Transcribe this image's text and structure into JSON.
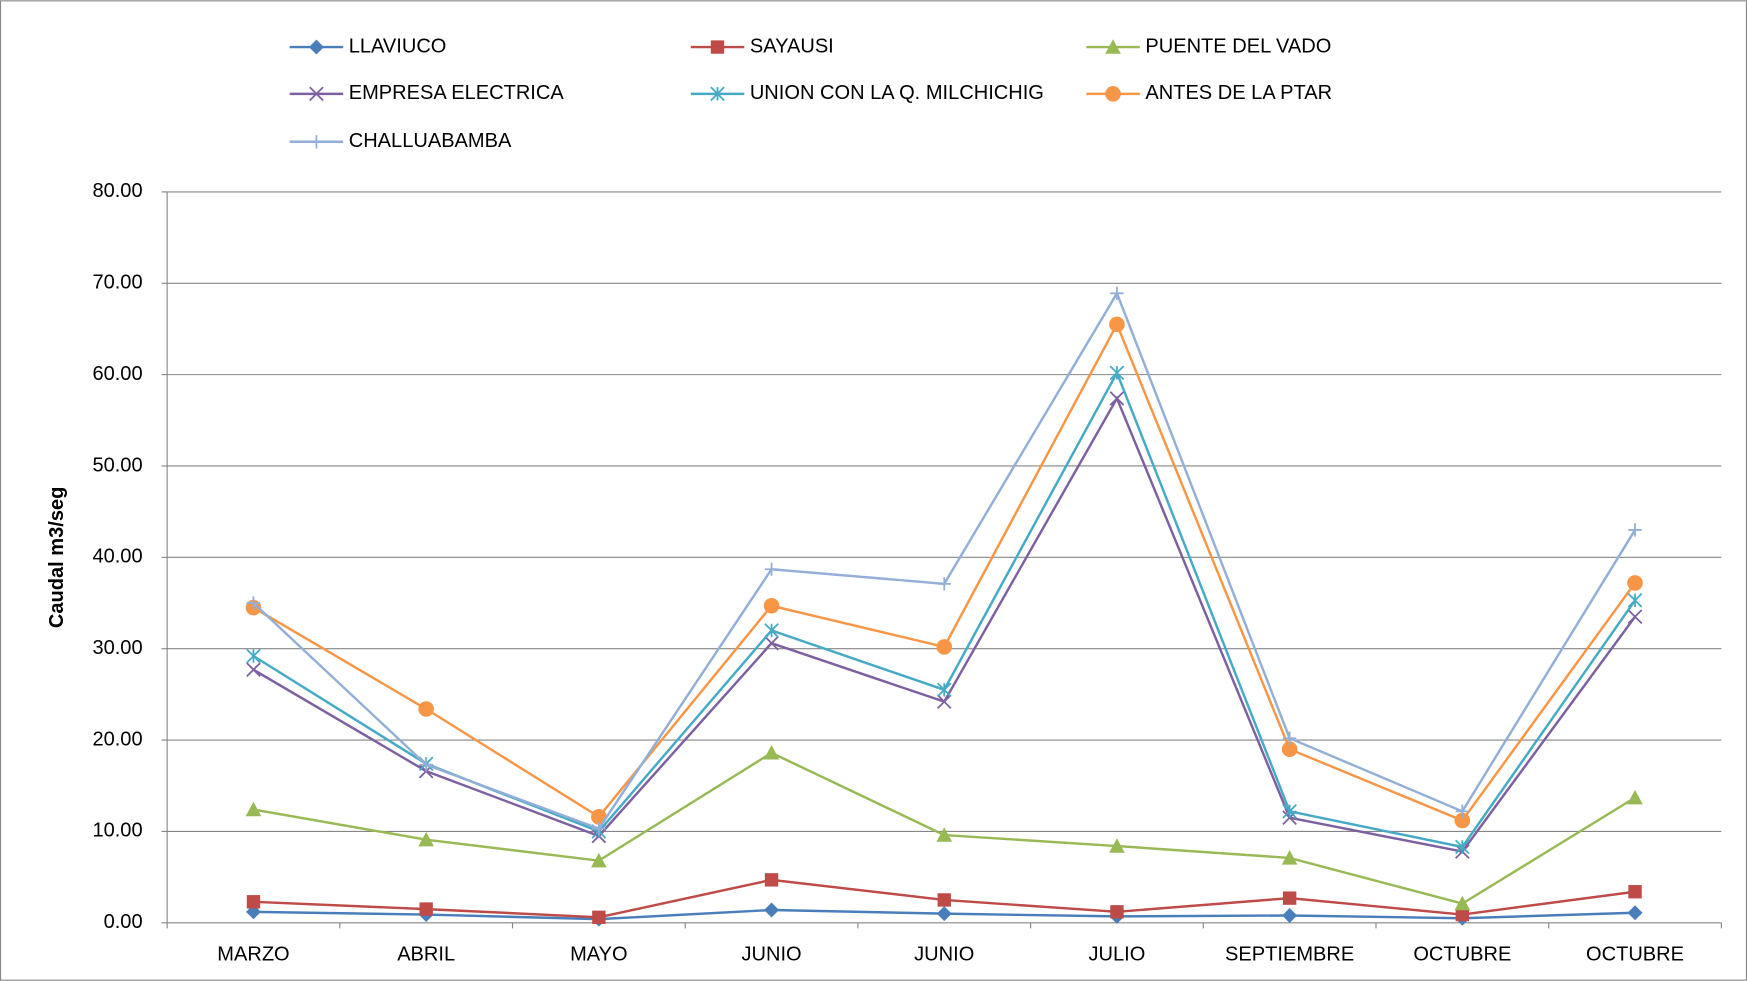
{
  "chart_data": {
    "type": "line",
    "y_label": "Caudal m3/seg",
    "categories": [
      "MARZO",
      "ABRIL",
      "MAYO",
      "JUNIO",
      "JUNIO",
      "JULIO",
      "SEPTIEMBRE",
      "OCTUBRE",
      "OCTUBRE"
    ],
    "ylim": [
      0,
      80
    ],
    "yticks": [
      {
        "value": 0,
        "label": "0.00"
      },
      {
        "value": 10,
        "label": "10.00"
      },
      {
        "value": 20,
        "label": "20.00"
      },
      {
        "value": 30,
        "label": "30.00"
      },
      {
        "value": 40,
        "label": "40.00"
      },
      {
        "value": 50,
        "label": "50.00"
      },
      {
        "value": 60,
        "label": "60.00"
      },
      {
        "value": 70,
        "label": "70.00"
      },
      {
        "value": 80,
        "label": "80.00"
      }
    ],
    "grid": true,
    "legend": "top",
    "series": [
      {
        "name": "LLAVIUCO",
        "color": "#4a7ebb",
        "marker": "diamond",
        "values": [
          1.2,
          0.9,
          0.4,
          1.4,
          1.0,
          0.7,
          0.8,
          0.5,
          1.1
        ]
      },
      {
        "name": "SAYAUSI",
        "color": "#be4b48",
        "marker": "square",
        "values": [
          2.3,
          1.5,
          0.6,
          4.7,
          2.5,
          1.2,
          2.7,
          0.9,
          3.4
        ]
      },
      {
        "name": "PUENTE DEL VADO",
        "color": "#98b954",
        "marker": "triangle",
        "values": [
          12.4,
          9.1,
          6.8,
          18.6,
          9.6,
          8.4,
          7.1,
          2.1,
          13.7
        ]
      },
      {
        "name": "EMPRESA ELECTRICA",
        "color": "#7d60a0",
        "marker": "x",
        "values": [
          27.7,
          16.6,
          9.5,
          30.6,
          24.2,
          57.4,
          11.5,
          7.8,
          33.5
        ]
      },
      {
        "name": "UNION CON LA Q. MILCHICHIG",
        "color": "#46aac5",
        "marker": "asterisk",
        "values": [
          29.2,
          17.4,
          10.0,
          32.0,
          25.5,
          60.2,
          12.2,
          8.3,
          35.3
        ]
      },
      {
        "name": "ANTES DE LA PTAR",
        "color": "#f79646",
        "marker": "circle",
        "values": [
          34.5,
          23.4,
          11.6,
          34.7,
          30.2,
          65.5,
          19.0,
          11.2,
          37.2
        ]
      },
      {
        "name": "CHALLUABAMBA",
        "color": "#94afd7",
        "marker": "plus",
        "values": [
          35.0,
          17.3,
          10.3,
          38.7,
          37.1,
          68.9,
          20.2,
          12.2,
          43.0
        ]
      }
    ]
  }
}
